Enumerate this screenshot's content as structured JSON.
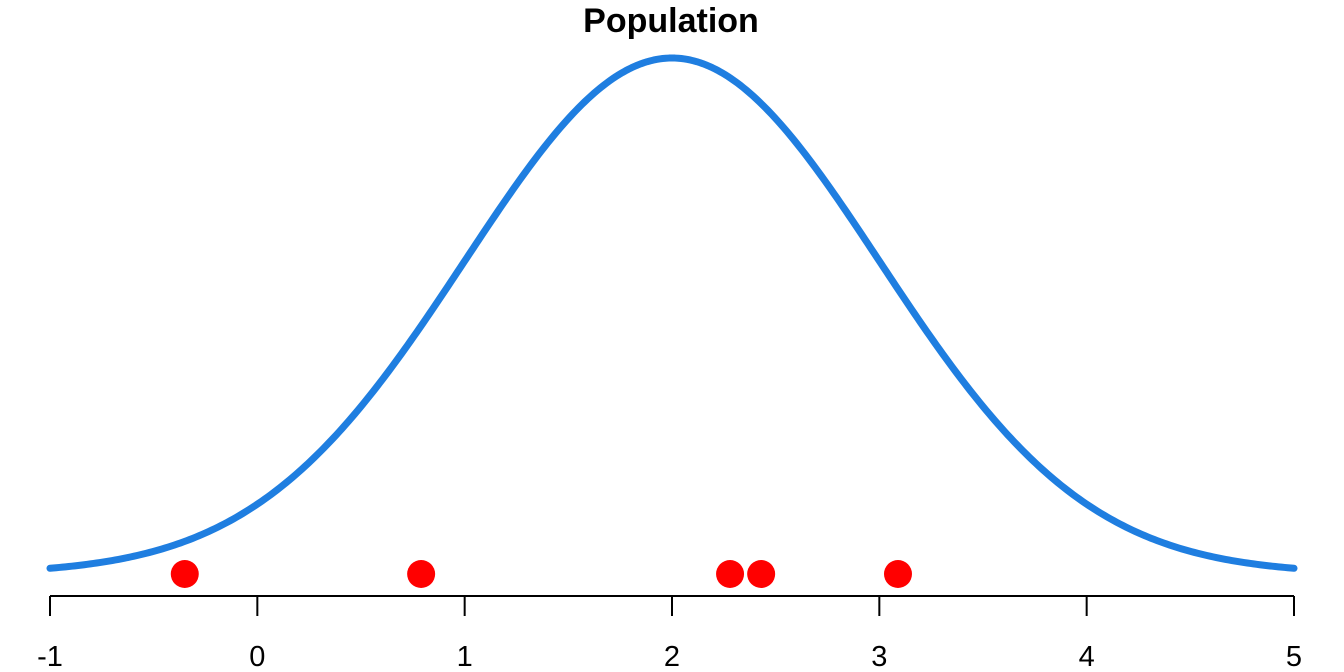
{
  "chart_data": {
    "type": "line",
    "title": "Population",
    "xlabel": "",
    "ylabel": "",
    "xlim": [
      -1,
      5
    ],
    "x_ticks": [
      "-1",
      "0",
      "1",
      "2",
      "3",
      "4",
      "5"
    ],
    "grid": false,
    "distribution": {
      "kind": "normal density curve",
      "mean": 2,
      "sd": 1,
      "x_range": [
        -1,
        5
      ]
    },
    "sample_points": [
      -0.35,
      0.79,
      2.28,
      2.43,
      3.09
    ],
    "colors": {
      "curve": "#1f7ee0",
      "points": "#ff0000",
      "axis": "#000000"
    }
  }
}
